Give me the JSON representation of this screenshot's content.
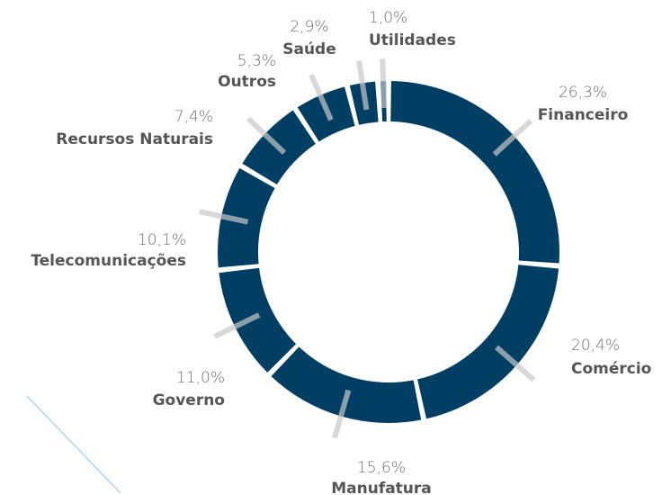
{
  "chart_data": {
    "type": "donut",
    "categories": [
      "Financeiro",
      "Comércio",
      "Manufatura",
      "Governo",
      "Telecomunicações",
      "Recursos Naturais",
      "Outros",
      "Saúde",
      "Utilidades"
    ],
    "values": [
      26.3,
      20.4,
      15.6,
      11.0,
      10.1,
      7.4,
      5.3,
      2.9,
      1.0
    ],
    "value_labels": [
      "26,3%",
      "20,4%",
      "15,6%",
      "11,0%",
      "10,1%",
      "7,4%",
      "5,3%",
      "2,9%",
      "1,0%"
    ],
    "color": "#003e63"
  }
}
